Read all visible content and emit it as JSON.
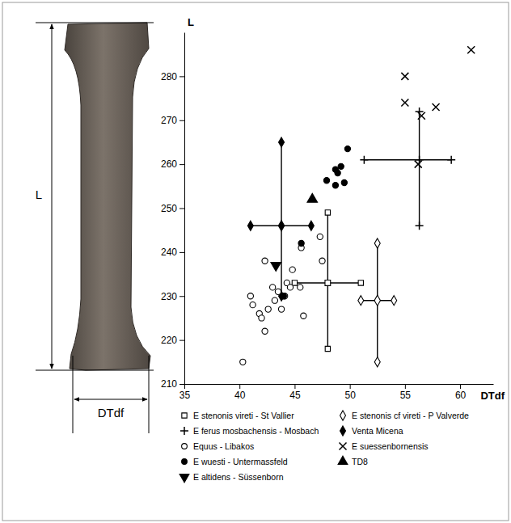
{
  "diagram": {
    "length_label": "L",
    "width_label": "DTdf"
  },
  "chart_data": {
    "type": "scatter",
    "x_label": "DTdf",
    "y_label": "L",
    "xlim": [
      35,
      63
    ],
    "ylim": [
      210,
      290
    ],
    "xticks": [
      35,
      40,
      45,
      50,
      55,
      60
    ],
    "yticks": [
      210,
      220,
      230,
      240,
      250,
      260,
      270,
      280
    ],
    "grid": false,
    "legend": "bottom",
    "series": [
      {
        "name": "E stenonis vireti - St Vallier",
        "marker": "square-open",
        "color": "#000000",
        "x": [
          48
        ],
        "y": [
          233
        ],
        "x_min": [
          45
        ],
        "x_max": [
          51
        ],
        "y_min": [
          218
        ],
        "y_max": [
          249
        ]
      },
      {
        "name": "E stenonis cf vireti - P Valverde",
        "marker": "diamond-open",
        "color": "#000000",
        "x": [
          52.5
        ],
        "y": [
          229
        ],
        "x_min": [
          51
        ],
        "x_max": [
          54
        ],
        "y_min": [
          215
        ],
        "y_max": [
          242
        ]
      },
      {
        "name": "E ferus mosbachensis - Mosbach",
        "marker": "plus",
        "color": "#000000",
        "x": [
          56.3
        ],
        "y": [
          261
        ],
        "x_min": [
          51.3
        ],
        "x_max": [
          59.2
        ],
        "y_min": [
          246
        ],
        "y_max": [
          272
        ]
      },
      {
        "name": "Venta Micena",
        "marker": "diamond",
        "color": "#000000",
        "x": [
          43.8
        ],
        "y": [
          246
        ],
        "x_min": [
          41
        ],
        "x_max": [
          46.5
        ],
        "y_min": [
          230
        ],
        "y_max": [
          265
        ]
      },
      {
        "name": "Equus - Libakos",
        "marker": "circle-open",
        "color": "#000000",
        "x": [
          40.3,
          42.3,
          41,
          41.2,
          41.8,
          42,
          42.3,
          42.6,
          43,
          43.2,
          43.5,
          43.8,
          44.1,
          44.3,
          44.6,
          44.8,
          45.5,
          45.6,
          45.8,
          47.3,
          47.5
        ],
        "y": [
          215,
          238,
          230,
          228,
          226,
          225,
          222,
          227,
          232,
          229,
          231,
          227,
          230,
          233,
          232,
          236,
          232,
          241,
          225.5,
          243.5,
          238
        ]
      },
      {
        "name": "E suessenbornensis",
        "marker": "cross",
        "color": "#000000",
        "x": [
          61,
          55,
          55,
          57.8,
          56.5,
          56.2
        ],
        "y": [
          286,
          280,
          274,
          273,
          271,
          260
        ]
      },
      {
        "name": "E wuesti - Untermassfeld",
        "marker": "circle",
        "color": "#000000",
        "x": [
          49.8,
          47.9,
          48.7,
          49.2,
          48.9,
          49.5,
          48.7,
          45.6,
          44
        ],
        "y": [
          263.5,
          256.3,
          258.8,
          259.5,
          258,
          255.8,
          255.2,
          242,
          230
        ]
      },
      {
        "name": "TD8",
        "marker": "triangle",
        "color": "#000000",
        "x": [
          46.6
        ],
        "y": [
          252
        ]
      },
      {
        "name": "E altidens - Süssenborn",
        "marker": "triangle-down",
        "color": "#000000",
        "x": [
          43.3
        ],
        "y": [
          237
        ]
      }
    ]
  }
}
